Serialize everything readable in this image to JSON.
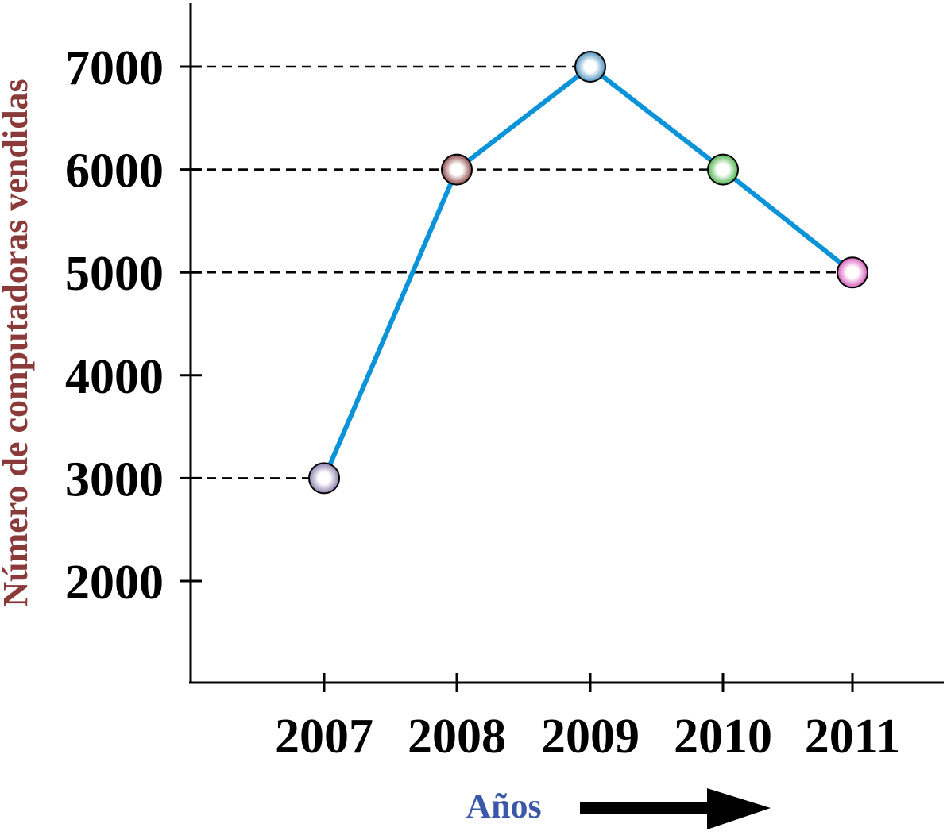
{
  "chart_data": {
    "type": "line",
    "xlabel": "Años",
    "ylabel": "Número de computadoras vendidas",
    "categories": [
      "2007",
      "2008",
      "2009",
      "2010",
      "2011"
    ],
    "series": [
      {
        "values": [
          3000,
          6000,
          7000,
          6000,
          5000
        ],
        "line_color": "#0a93d8",
        "point_colors": [
          "#7a6aa0",
          "#7a2a2a",
          "#2f7fb0",
          "#2fa82f",
          "#d040b0"
        ]
      }
    ],
    "yticks": [
      2000,
      3000,
      4000,
      5000,
      6000,
      7000
    ],
    "ylim": [
      1000,
      7600
    ],
    "grid": "dashed guide lines from points to y-axis",
    "legend": "none"
  }
}
